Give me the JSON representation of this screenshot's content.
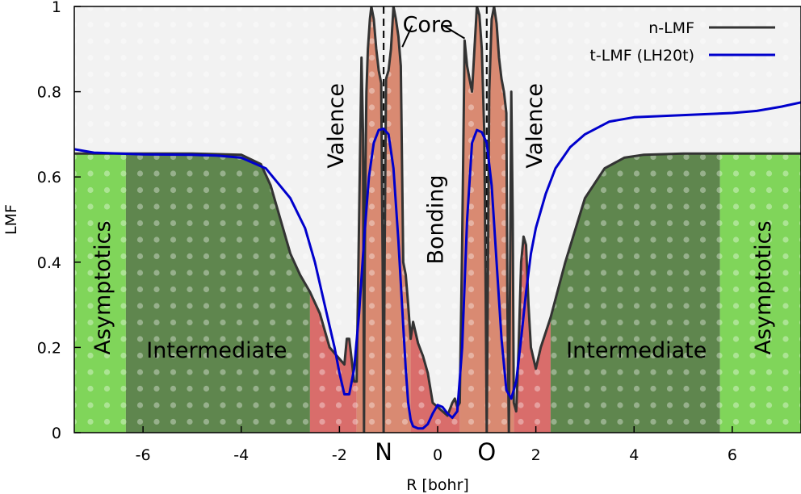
{
  "chart_data": {
    "type": "line",
    "title": "",
    "xlabel": "R [bohr]",
    "ylabel": "LMF",
    "xlim": [
      -7.4,
      7.4
    ],
    "ylim": [
      0,
      1
    ],
    "x_ticks": [
      -6,
      -4,
      -2,
      0,
      2,
      4,
      6
    ],
    "x_tick_labels": [
      "-6",
      "-4",
      "-2",
      "0",
      "2",
      "4",
      "6"
    ],
    "y_ticks": [
      0,
      0.2,
      0.4,
      0.6,
      0.8,
      1
    ],
    "y_tick_labels": [
      "0",
      "0.2",
      "0.4",
      "0.6",
      "0.8",
      "1"
    ],
    "atoms": [
      {
        "label": "N",
        "x": -1.1
      },
      {
        "label": "O",
        "x": 1.0
      }
    ],
    "regions": [
      {
        "name": "Asymptotics",
        "x": [
          -7.4,
          -6.35
        ],
        "color": "#80d55a",
        "label": "Asymptotics"
      },
      {
        "name": "Intermediate",
        "x": [
          -6.35,
          -2.6
        ],
        "color": "#5f864e",
        "label": "Intermediate"
      },
      {
        "name": "Valence",
        "x": [
          -2.6,
          -1.65
        ],
        "color": "#d96d6b",
        "label": "Valence"
      },
      {
        "name": "Core",
        "x": [
          -1.65,
          -0.55
        ],
        "color": "#d98a72",
        "label": "Core"
      },
      {
        "name": "Bonding",
        "x": [
          -0.55,
          0.45
        ],
        "color": "#d96d6b",
        "label": "Bonding"
      },
      {
        "name": "Core",
        "x": [
          0.45,
          1.55
        ],
        "color": "#d98a72",
        "label": ""
      },
      {
        "name": "Valence",
        "x": [
          1.55,
          2.3
        ],
        "color": "#d96d6b",
        "label": "Valence"
      },
      {
        "name": "Intermediate",
        "x": [
          2.3,
          5.75
        ],
        "color": "#5f864e",
        "label": "Intermediate"
      },
      {
        "name": "Asymptotics",
        "x": [
          5.75,
          7.4
        ],
        "color": "#80d55a",
        "label": "Asymptotics"
      }
    ],
    "series": [
      {
        "name": "n-LMF",
        "color": "#333333",
        "x": [
          -7.4,
          -7.0,
          -6.5,
          -6.0,
          -5.0,
          -4.0,
          -3.6,
          -3.4,
          -3.2,
          -3.0,
          -2.8,
          -2.6,
          -2.4,
          -2.2,
          -2.05,
          -1.9,
          -1.85,
          -1.8,
          -1.75,
          -1.7,
          -1.65,
          -1.6,
          -1.55,
          -1.52,
          -1.5,
          -1.49,
          -1.47,
          -1.45,
          -1.42,
          -1.38,
          -1.35,
          -1.3,
          -1.25,
          -1.2,
          -1.15,
          -1.12,
          -1.1,
          -1.08,
          -1.05,
          -1.0,
          -0.95,
          -0.9,
          -0.85,
          -0.8,
          -0.75,
          -0.7,
          -0.65,
          -0.6,
          -0.55,
          -0.5,
          -0.4,
          -0.3,
          -0.2,
          -0.1,
          0.0,
          0.1,
          0.2,
          0.3,
          0.35,
          0.4,
          0.45,
          0.5,
          0.55,
          0.6,
          0.65,
          0.7,
          0.75,
          0.8,
          0.85,
          0.9,
          0.95,
          0.98,
          1.0,
          1.02,
          1.05,
          1.1,
          1.15,
          1.2,
          1.25,
          1.3,
          1.35,
          1.4,
          1.42,
          1.45,
          1.47,
          1.5,
          1.53,
          1.55,
          1.6,
          1.65,
          1.7,
          1.75,
          1.8,
          1.85,
          1.9,
          2.0,
          2.1,
          2.3,
          2.6,
          3.0,
          3.4,
          3.8,
          4.2,
          5.0,
          6.0,
          7.0,
          7.4
        ],
        "y": [
          0.655,
          0.655,
          0.655,
          0.655,
          0.655,
          0.652,
          0.63,
          0.58,
          0.5,
          0.42,
          0.37,
          0.33,
          0.28,
          0.2,
          0.18,
          0.16,
          0.22,
          0.22,
          0.17,
          0.12,
          0.12,
          0.5,
          0.88,
          0.7,
          0.0,
          0.3,
          0.62,
          0.8,
          0.9,
          0.97,
          1.0,
          0.97,
          0.9,
          0.85,
          0.82,
          0.4,
          0.0,
          0.4,
          0.83,
          0.85,
          0.9,
          1.0,
          0.97,
          0.93,
          0.86,
          0.4,
          0.37,
          0.3,
          0.22,
          0.26,
          0.21,
          0.18,
          0.14,
          0.07,
          0.06,
          0.05,
          0.04,
          0.07,
          0.08,
          0.06,
          0.07,
          0.45,
          0.92,
          0.86,
          0.83,
          0.8,
          0.9,
          1.0,
          0.98,
          0.9,
          0.7,
          0.3,
          0.0,
          0.3,
          0.8,
          0.97,
          1.0,
          0.96,
          0.88,
          0.83,
          0.8,
          0.75,
          0.3,
          0.0,
          0.3,
          0.8,
          0.5,
          0.07,
          0.05,
          0.2,
          0.4,
          0.46,
          0.44,
          0.3,
          0.2,
          0.15,
          0.2,
          0.27,
          0.4,
          0.55,
          0.62,
          0.645,
          0.652,
          0.655,
          0.655,
          0.655,
          0.655
        ]
      },
      {
        "name": "t-LMF (LH20t)",
        "color": "#0000cc",
        "x": [
          -7.4,
          -7.0,
          -6.0,
          -5.0,
          -4.5,
          -4.0,
          -3.5,
          -3.0,
          -2.7,
          -2.5,
          -2.3,
          -2.1,
          -2.0,
          -1.9,
          -1.8,
          -1.7,
          -1.6,
          -1.5,
          -1.4,
          -1.3,
          -1.2,
          -1.1,
          -1.0,
          -0.9,
          -0.8,
          -0.7,
          -0.65,
          -0.6,
          -0.55,
          -0.5,
          -0.4,
          -0.3,
          -0.2,
          -0.1,
          0.0,
          0.1,
          0.2,
          0.3,
          0.4,
          0.5,
          0.55,
          0.6,
          0.7,
          0.8,
          0.9,
          1.0,
          1.1,
          1.2,
          1.3,
          1.4,
          1.5,
          1.6,
          1.7,
          1.8,
          1.9,
          2.0,
          2.2,
          2.4,
          2.7,
          3.0,
          3.5,
          4.0,
          5.0,
          6.0,
          6.5,
          7.0,
          7.4
        ],
        "y": [
          0.665,
          0.657,
          0.653,
          0.652,
          0.65,
          0.645,
          0.62,
          0.55,
          0.48,
          0.4,
          0.3,
          0.2,
          0.14,
          0.09,
          0.09,
          0.15,
          0.28,
          0.45,
          0.6,
          0.68,
          0.71,
          0.713,
          0.7,
          0.62,
          0.45,
          0.25,
          0.15,
          0.07,
          0.03,
          0.015,
          0.01,
          0.01,
          0.02,
          0.045,
          0.065,
          0.06,
          0.045,
          0.035,
          0.05,
          0.2,
          0.35,
          0.5,
          0.68,
          0.71,
          0.705,
          0.68,
          0.58,
          0.4,
          0.22,
          0.1,
          0.08,
          0.12,
          0.22,
          0.33,
          0.42,
          0.48,
          0.56,
          0.62,
          0.67,
          0.7,
          0.73,
          0.74,
          0.745,
          0.75,
          0.755,
          0.765,
          0.775
        ]
      }
    ],
    "annotations": [
      {
        "text": "Core",
        "x": -0.2,
        "y": 0.955,
        "rotate": 0
      },
      {
        "text": "Valence",
        "x": -2.05,
        "y": 0.72,
        "rotate": -90
      },
      {
        "text": "Valence",
        "x": 2.0,
        "y": 0.72,
        "rotate": -90
      },
      {
        "text": "Bonding",
        "x": -0.02,
        "y": 0.5,
        "rotate": -90
      },
      {
        "text": "Asymptotics",
        "x": -6.8,
        "y": 0.34,
        "rotate": -90
      },
      {
        "text": "Asymptotics",
        "x": 6.65,
        "y": 0.34,
        "rotate": -90
      },
      {
        "text": "Intermediate",
        "x": -4.5,
        "y": 0.19,
        "rotate": 0
      },
      {
        "text": "Intermediate",
        "x": 4.05,
        "y": 0.19,
        "rotate": 0
      }
    ],
    "legend": {
      "placement": "top-right",
      "entries": [
        "n-LMF",
        "t-LMF (LH20t)"
      ]
    },
    "grid": false
  }
}
